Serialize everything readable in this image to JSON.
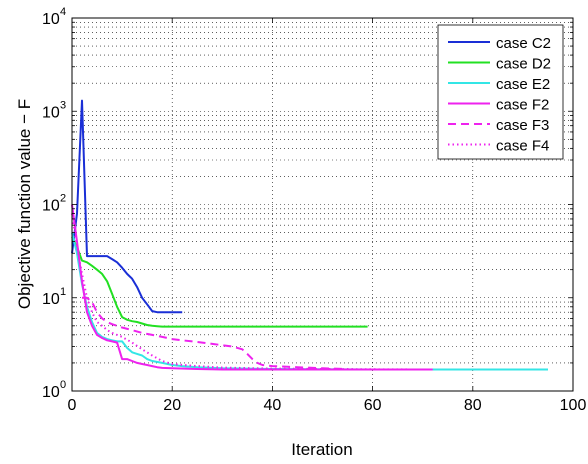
{
  "chart_data": {
    "type": "line",
    "title": "",
    "xlabel": "Iteration",
    "ylabel": "Objective function value − F",
    "xlim": [
      0,
      100
    ],
    "ylim": [
      1,
      10000
    ],
    "yscale": "log",
    "grid": "dotted, major and minor",
    "legend_position": "top-right",
    "x_ticks": [
      0,
      20,
      40,
      60,
      80,
      100
    ],
    "x_tick_labels": [
      "0",
      "20",
      "40",
      "60",
      "80",
      "100"
    ],
    "y_ticks": [
      1,
      10,
      100,
      1000,
      10000
    ],
    "y_tick_labels": [
      {
        "base": "10",
        "exp": "0"
      },
      {
        "base": "10",
        "exp": "1"
      },
      {
        "base": "10",
        "exp": "2"
      },
      {
        "base": "10",
        "exp": "3"
      },
      {
        "base": "10",
        "exp": "4"
      }
    ],
    "series": [
      {
        "name": "case C2",
        "color": "#1a2fd6",
        "style": "solid",
        "x": [
          0,
          1,
          2,
          3,
          4,
          5,
          6,
          7,
          8,
          9,
          10,
          11,
          12,
          13,
          14,
          15,
          16,
          17,
          18,
          19,
          20,
          21,
          22
        ],
        "y": [
          30,
          80,
          1300,
          28,
          28,
          28,
          28,
          28,
          26,
          24,
          21,
          18,
          16,
          13,
          10,
          8.5,
          7.2,
          7.0,
          7.0,
          7.0,
          7.0,
          7.0,
          7.0
        ]
      },
      {
        "name": "case D2",
        "color": "#22e022",
        "style": "solid",
        "x": [
          0,
          1,
          2,
          3,
          4,
          5,
          6,
          7,
          8,
          9,
          10,
          11,
          12,
          13,
          14,
          15,
          16,
          17,
          18,
          20,
          25,
          30,
          40,
          50,
          59
        ],
        "y": [
          45,
          35,
          25,
          24,
          22,
          20,
          18,
          15,
          11,
          8,
          6.2,
          5.8,
          5.6,
          5.5,
          5.3,
          5.1,
          5.0,
          4.95,
          4.9,
          4.9,
          4.9,
          4.9,
          4.9,
          4.9,
          4.9
        ]
      },
      {
        "name": "case E2",
        "color": "#33e6e6",
        "style": "solid",
        "x": [
          0,
          1,
          2,
          3,
          4,
          5,
          6,
          7,
          8,
          9,
          10,
          11,
          12,
          13,
          14,
          15,
          16,
          18,
          20,
          22,
          25,
          30,
          40,
          60,
          80,
          95
        ],
        "y": [
          50,
          30,
          14,
          8,
          5.5,
          4.2,
          3.8,
          3.6,
          3.5,
          3.4,
          3.4,
          2.9,
          2.6,
          2.5,
          2.4,
          2.2,
          2.1,
          2.0,
          1.9,
          1.85,
          1.8,
          1.75,
          1.72,
          1.7,
          1.7,
          1.7
        ]
      },
      {
        "name": "case F2",
        "color": "#ee22ee",
        "style": "solid",
        "x": [
          0,
          1,
          2,
          3,
          4,
          5,
          6,
          7,
          8,
          9,
          10,
          11,
          12,
          13,
          14,
          15,
          16,
          17,
          18,
          20,
          25,
          30,
          40,
          50,
          60,
          72
        ],
        "y": [
          100,
          40,
          15,
          7,
          5,
          4,
          3.7,
          3.5,
          3.4,
          3.3,
          2.2,
          2.2,
          2.1,
          2.0,
          1.95,
          1.9,
          1.85,
          1.8,
          1.77,
          1.75,
          1.72,
          1.7,
          1.7,
          1.7,
          1.7,
          1.7
        ]
      },
      {
        "name": "case F3",
        "color": "#ee22ee",
        "style": "dashed",
        "x": [
          2,
          3,
          4,
          5,
          6,
          7,
          8,
          9,
          10,
          12,
          14,
          16,
          18,
          20,
          22,
          24,
          26,
          28,
          30,
          32,
          34,
          35,
          36,
          37,
          38,
          40,
          45,
          50,
          55
        ],
        "y": [
          10,
          10,
          9,
          7,
          6,
          5.5,
          5.2,
          5.0,
          4.8,
          4.5,
          4.2,
          4.0,
          3.8,
          3.6,
          3.5,
          3.4,
          3.3,
          3.2,
          3.1,
          3.0,
          2.8,
          2.5,
          2.2,
          2.0,
          1.9,
          1.85,
          1.8,
          1.75,
          1.72
        ]
      },
      {
        "name": "case F4",
        "color": "#ee22ee",
        "style": "dotted",
        "x": [
          0,
          1,
          2,
          3,
          4,
          5,
          6,
          7,
          8,
          9,
          10,
          12,
          14,
          16,
          18,
          20,
          25,
          30,
          40,
          50,
          60,
          70
        ],
        "y": [
          80,
          35,
          18,
          10,
          7,
          5.5,
          5.0,
          4.5,
          4.2,
          4.0,
          3.8,
          3.3,
          2.8,
          2.4,
          2.1,
          1.95,
          1.85,
          1.78,
          1.74,
          1.72,
          1.71,
          1.7
        ]
      }
    ]
  }
}
